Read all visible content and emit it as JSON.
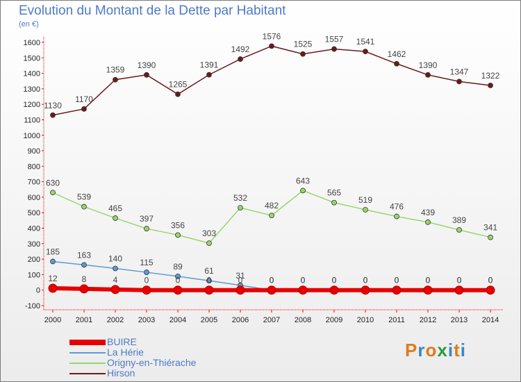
{
  "title": "Evolution du Montant de la Dette par Habitant",
  "subtitle": "(en €)",
  "logo": {
    "letters": [
      "P",
      "r",
      "o",
      "x",
      "i",
      "t",
      "i"
    ],
    "colors": [
      "#e07b1a",
      "#3a86c8",
      "#e07b1a",
      "#2b9a3e",
      "#3a86c8",
      "#e07b1a",
      "#3a86c8"
    ]
  },
  "chart_data": {
    "type": "line",
    "x": [
      "2000",
      "2001",
      "2002",
      "2003",
      "2004",
      "2005",
      "2006",
      "2007",
      "2008",
      "2009",
      "2010",
      "2011",
      "2012",
      "2013",
      "2014"
    ],
    "ylim": [
      -100,
      1600
    ],
    "yticks": [
      -100,
      0,
      100,
      200,
      300,
      400,
      500,
      600,
      700,
      800,
      900,
      1000,
      1100,
      1200,
      1300,
      1400,
      1500,
      1600
    ],
    "grid": false,
    "legend_position": "bottom-left",
    "series": [
      {
        "name": "BUIRE",
        "color": "#e80000",
        "values": [
          12,
          8,
          4,
          0,
          0,
          0,
          0,
          0,
          0,
          0,
          0,
          0,
          0,
          0,
          0
        ],
        "labels": [
          "12",
          "8",
          "4",
          "0",
          "0",
          "0",
          "0",
          "0",
          "0",
          "0",
          "0",
          "0",
          "0",
          "0",
          "0"
        ]
      },
      {
        "name": "La Hérie",
        "color": "#5b9bd5",
        "values": [
          185,
          163,
          140,
          115,
          89,
          61,
          31,
          0,
          0,
          0,
          0,
          0,
          0,
          0,
          0
        ],
        "labels": [
          "185",
          "163",
          "140",
          "115",
          "89",
          "61",
          "31",
          "0",
          "0",
          "0",
          "0",
          "0",
          "0",
          "0",
          "0"
        ]
      },
      {
        "name": "Origny-en-Thiérache",
        "color": "#99d66d",
        "values": [
          630,
          539,
          465,
          397,
          356,
          303,
          532,
          482,
          643,
          565,
          519,
          476,
          439,
          389,
          341
        ],
        "labels": [
          "630",
          "539",
          "465",
          "397",
          "356",
          "303",
          "532",
          "482",
          "643",
          "565",
          "519",
          "476",
          "439",
          "389",
          "341"
        ]
      },
      {
        "name": "Hirson",
        "color": "#6b1a1a",
        "values": [
          1130,
          1170,
          1359,
          1390,
          1265,
          1391,
          1492,
          1576,
          1525,
          1557,
          1541,
          1462,
          1390,
          1347,
          1322
        ],
        "labels": [
          "1130",
          "1170",
          "1359",
          "1390",
          "1265",
          "1391",
          "1492",
          "1576",
          "1525",
          "1557",
          "1541",
          "1462",
          "1390",
          "1347",
          "1322"
        ]
      }
    ]
  }
}
